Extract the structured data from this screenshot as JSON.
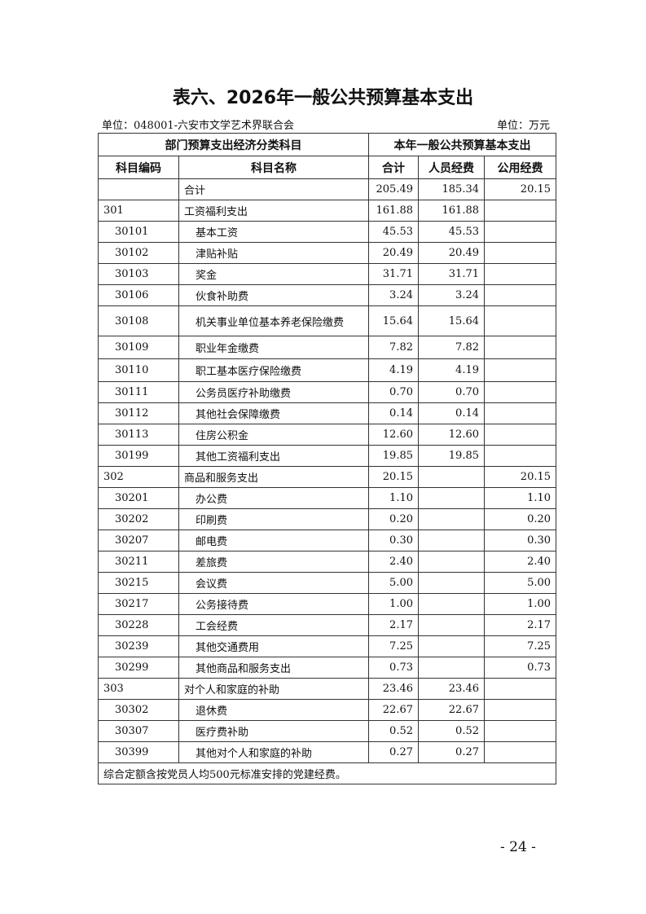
{
  "title": "表六、2026年一般公共预算基本支出",
  "unit_left": "单位：048001-六安市文学艺术界联合会",
  "unit_right": "单位：万元",
  "header": {
    "group_left": "部门预算支出经济分类科目",
    "group_right": "本年一般公共预算基本支出",
    "code": "科目编码",
    "name": "科目名称",
    "total": "合计",
    "personnel": "人员经费",
    "public": "公用经费"
  },
  "rows": [
    {
      "code": "",
      "name": "合计",
      "total": "205.49",
      "personnel": "185.34",
      "public": "20.15",
      "level": 0
    },
    {
      "code": "301",
      "name": "工资福利支出",
      "total": "161.88",
      "personnel": "161.88",
      "public": "",
      "level": 0
    },
    {
      "code": "30101",
      "name": "基本工资",
      "total": "45.53",
      "personnel": "45.53",
      "public": "",
      "level": 1
    },
    {
      "code": "30102",
      "name": "津贴补贴",
      "total": "20.49",
      "personnel": "20.49",
      "public": "",
      "level": 1
    },
    {
      "code": "30103",
      "name": "奖金",
      "total": "31.71",
      "personnel": "31.71",
      "public": "",
      "level": 1
    },
    {
      "code": "30106",
      "name": "伙食补助费",
      "total": "3.24",
      "personnel": "3.24",
      "public": "",
      "level": 1
    },
    {
      "code": "30108",
      "name": "机关事业单位基本养老保险缴费",
      "total": "15.64",
      "personnel": "15.64",
      "public": "",
      "level": 1
    },
    {
      "code": "30109",
      "name": "职业年金缴费",
      "total": "7.82",
      "personnel": "7.82",
      "public": "",
      "level": 1
    },
    {
      "code": "30110",
      "name": "职工基本医疗保险缴费",
      "total": "4.19",
      "personnel": "4.19",
      "public": "",
      "level": 1
    },
    {
      "code": "30111",
      "name": "公务员医疗补助缴费",
      "total": "0.70",
      "personnel": "0.70",
      "public": "",
      "level": 1
    },
    {
      "code": "30112",
      "name": "其他社会保障缴费",
      "total": "0.14",
      "personnel": "0.14",
      "public": "",
      "level": 1
    },
    {
      "code": "30113",
      "name": "住房公积金",
      "total": "12.60",
      "personnel": "12.60",
      "public": "",
      "level": 1
    },
    {
      "code": "30199",
      "name": "其他工资福利支出",
      "total": "19.85",
      "personnel": "19.85",
      "public": "",
      "level": 1
    },
    {
      "code": "302",
      "name": "商品和服务支出",
      "total": "20.15",
      "personnel": "",
      "public": "20.15",
      "level": 0
    },
    {
      "code": "30201",
      "name": "办公费",
      "total": "1.10",
      "personnel": "",
      "public": "1.10",
      "level": 1
    },
    {
      "code": "30202",
      "name": "印刷费",
      "total": "0.20",
      "personnel": "",
      "public": "0.20",
      "level": 1
    },
    {
      "code": "30207",
      "name": "邮电费",
      "total": "0.30",
      "personnel": "",
      "public": "0.30",
      "level": 1
    },
    {
      "code": "30211",
      "name": "差旅费",
      "total": "2.40",
      "personnel": "",
      "public": "2.40",
      "level": 1
    },
    {
      "code": "30215",
      "name": "会议费",
      "total": "5.00",
      "personnel": "",
      "public": "5.00",
      "level": 1
    },
    {
      "code": "30217",
      "name": "公务接待费",
      "total": "1.00",
      "personnel": "",
      "public": "1.00",
      "level": 1
    },
    {
      "code": "30228",
      "name": "工会经费",
      "total": "2.17",
      "personnel": "",
      "public": "2.17",
      "level": 1
    },
    {
      "code": "30239",
      "name": "其他交通费用",
      "total": "7.25",
      "personnel": "",
      "public": "7.25",
      "level": 1
    },
    {
      "code": "30299",
      "name": "其他商品和服务支出",
      "total": "0.73",
      "personnel": "",
      "public": "0.73",
      "level": 1
    },
    {
      "code": "303",
      "name": "对个人和家庭的补助",
      "total": "23.46",
      "personnel": "23.46",
      "public": "",
      "level": 0
    },
    {
      "code": "30302",
      "name": "退休费",
      "total": "22.67",
      "personnel": "22.67",
      "public": "",
      "level": 1
    },
    {
      "code": "30307",
      "name": "医疗费补助",
      "total": "0.52",
      "personnel": "0.52",
      "public": "",
      "level": 1
    },
    {
      "code": "30399",
      "name": "其他对个人和家庭的补助",
      "total": "0.27",
      "personnel": "0.27",
      "public": "",
      "level": 1
    }
  ],
  "note": "综合定额含按党员人均500元标准安排的党建经费。",
  "page_number": "- 24 -"
}
